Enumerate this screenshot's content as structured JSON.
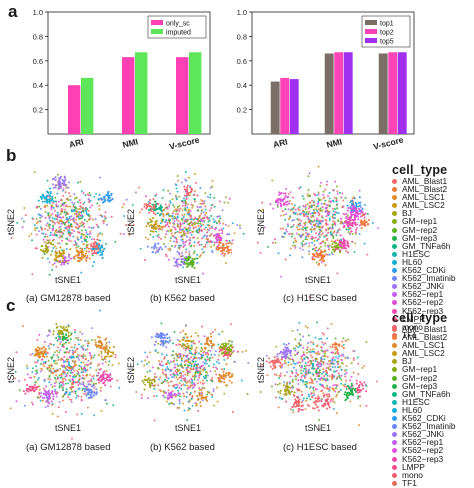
{
  "panel_labels": {
    "a": "a",
    "b": "b",
    "c": "c"
  },
  "chart_data": [
    {
      "id": "a-left",
      "type": "bar",
      "categories": [
        "ARI",
        "NMI",
        "V-score"
      ],
      "series": [
        {
          "name": "only_sc",
          "color": "#ff3fb4",
          "values": [
            0.4,
            0.63,
            0.63
          ]
        },
        {
          "name": "imputed",
          "color": "#5ee65a",
          "values": [
            0.46,
            0.67,
            0.67
          ]
        }
      ],
      "ylim": [
        0,
        1.0
      ],
      "yticks": [
        "0.2",
        "0.4",
        "0.6",
        "0.8",
        "1.0"
      ],
      "legend_position": "top-right"
    },
    {
      "id": "a-right",
      "type": "bar",
      "categories": [
        "ARI",
        "NMI",
        "V-score"
      ],
      "series": [
        {
          "name": "top1",
          "color": "#7a6e66",
          "values": [
            0.43,
            0.66,
            0.66
          ]
        },
        {
          "name": "top2",
          "color": "#ff44b8",
          "values": [
            0.46,
            0.67,
            0.67
          ]
        },
        {
          "name": "top5",
          "color": "#a02ff0",
          "values": [
            0.45,
            0.67,
            0.67
          ]
        }
      ],
      "ylim": [
        0,
        1.0
      ],
      "yticks": [
        "0.2",
        "0.4",
        "0.6",
        "0.8",
        "1.0"
      ],
      "legend_position": "top-right"
    },
    {
      "id": "tsne-panels",
      "type": "scatter",
      "xlabel": "tSNE1",
      "ylabel": "tSNE2",
      "row_b_subtitles": [
        "(a) GM12878 based",
        "(b) K562 based",
        "(c) H1ESC based"
      ],
      "row_c_subtitles": [
        "(a) GM12878 based",
        "(b) K562 based",
        "(c) H1ESC based"
      ]
    }
  ],
  "legend": {
    "title": "cell_type",
    "items": [
      {
        "label": "AML_Blast1",
        "color": "#f46a6a"
      },
      {
        "label": "AML_Blast2",
        "color": "#ef7a3c"
      },
      {
        "label": "AML_LSC1",
        "color": "#e08a2a"
      },
      {
        "label": "AML_LSC2",
        "color": "#c89a10"
      },
      {
        "label": "BJ",
        "color": "#a8a518"
      },
      {
        "label": "GM−rep1",
        "color": "#86ac14"
      },
      {
        "label": "GM−rep2",
        "color": "#58b020"
      },
      {
        "label": "GM−rep3",
        "color": "#21b34a"
      },
      {
        "label": "GM_TNFa6h",
        "color": "#10b586"
      },
      {
        "label": "H1ESC",
        "color": "#13b5ad"
      },
      {
        "label": "HL60",
        "color": "#12aed2"
      },
      {
        "label": "K562_CDKi",
        "color": "#2a9cf0"
      },
      {
        "label": "K562_Imatinib",
        "color": "#6c86f6"
      },
      {
        "label": "K562_JNKi",
        "color": "#9a74f5"
      },
      {
        "label": "K562−rep1",
        "color": "#c25ff0"
      },
      {
        "label": "K562−rep2",
        "color": "#e04fd6"
      },
      {
        "label": "K562−rep3",
        "color": "#f04aae"
      },
      {
        "label": "LMPP",
        "color": "#f4508a"
      },
      {
        "label": "mono",
        "color": "#f25e6f"
      },
      {
        "label": "TF1",
        "color": "#e36b58"
      }
    ]
  }
}
